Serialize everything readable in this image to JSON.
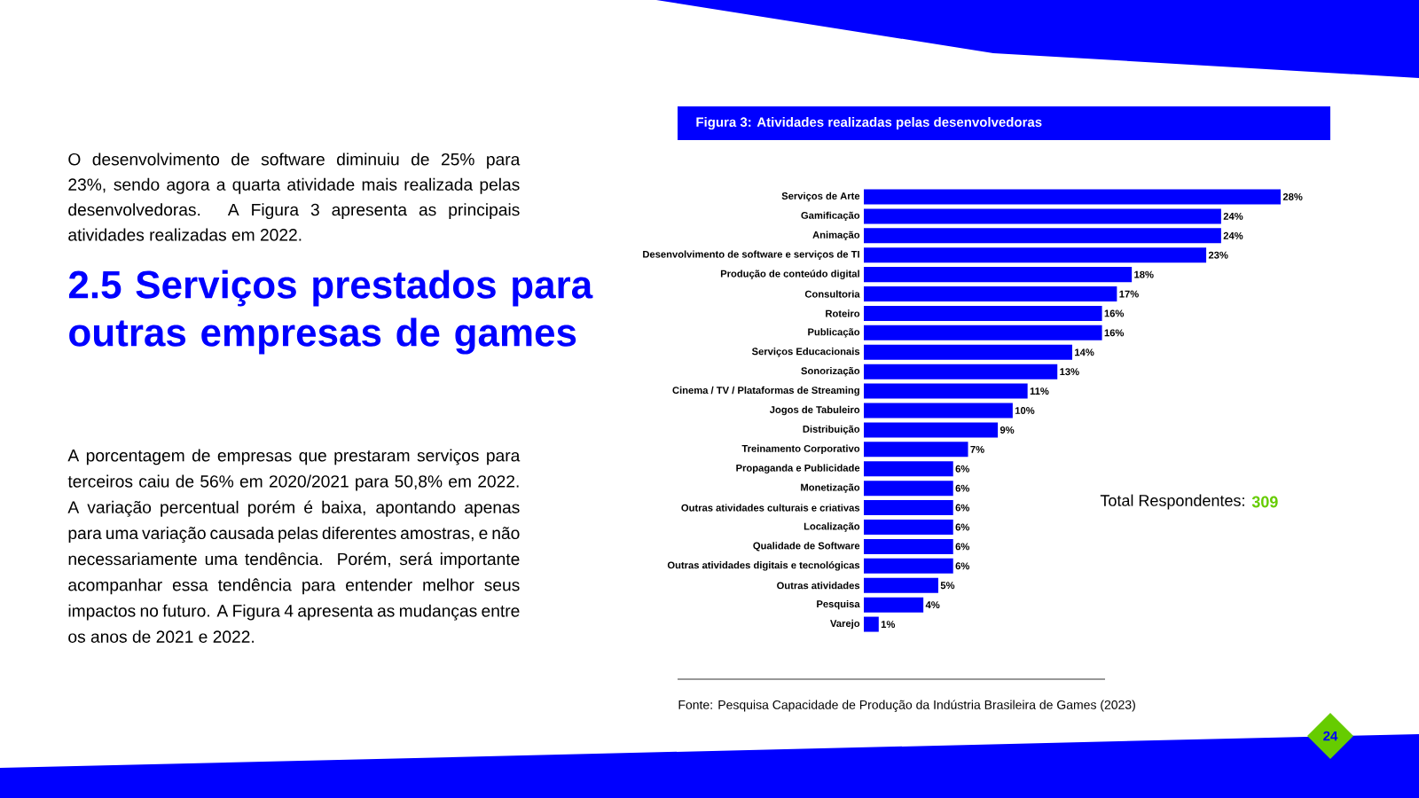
{
  "chart_data": {
    "type": "bar",
    "orientation": "horizontal",
    "title": "Figura 3: Atividades realizadas pelas desenvolvedoras",
    "color": "#0000ff",
    "categories": [
      "Serviços de Arte",
      "Gamificação",
      "Animação",
      "Desenvolvimento de software e serviços de TI",
      "Produção de conteúdo digital",
      "Consultoria",
      "Roteiro",
      "Publicação",
      "Serviços Educacionais",
      "Sonorização",
      "Cinema / TV / Plataformas de Streaming",
      "Jogos de Tabuleiro",
      "Distribuição",
      "Treinamento Corporativo",
      "Propaganda e Publicidade",
      "Monetização",
      "Outras atividades culturais e criativas",
      "Localização",
      "Qualidade de Software",
      "Outras atividades digitais e tecnológicas",
      "Outras atividades",
      "Pesquisa",
      "Varejo"
    ],
    "values": [
      28,
      24,
      24,
      23,
      18,
      17,
      16,
      16,
      14,
      13,
      11,
      10,
      9,
      7,
      6,
      6,
      6,
      6,
      6,
      6,
      5,
      4,
      1
    ],
    "value_labels": [
      "28%",
      "24%",
      "24%",
      "23%",
      "18%",
      "17%",
      "16%",
      "16%",
      "14%",
      "13%",
      "11%",
      "10%",
      "9%",
      "7%",
      "6%",
      "6%",
      "6%",
      "6%",
      "6%",
      "6%",
      "5%",
      "4%",
      "1%"
    ],
    "annotations": [
      "O desenvolvimento de software diminuiu de 25% para 23%, sendo agora a quarta atividade mais realizada pelas desenvolvedoras. A Figura 3 apresenta as principais atividades realizadas em 2022.",
      "2.5 Serviços prestados para outras empresas de games",
      "A porcentagem de empresas que prestaram serviços para terceiros caiu de 56% em 2020/2021 para 50,8% em 2022. A variação percentual porém é baixa, apontando apenas para uma variação causada pelas diferentes amostras, e não necessariamente uma tendência. Porém, será importante acompanhar essa tendência para entender melhor seus impactos no futuro. A Figura 4 apresenta as mudanças entre os anos de 2021 e 2022.",
      "Total Respondentes:",
      "309",
      "Fonte: Pesquisa Capacidade de Produção da Indústria Brasileira de Games (2023)",
      "24"
    ]
  }
}
